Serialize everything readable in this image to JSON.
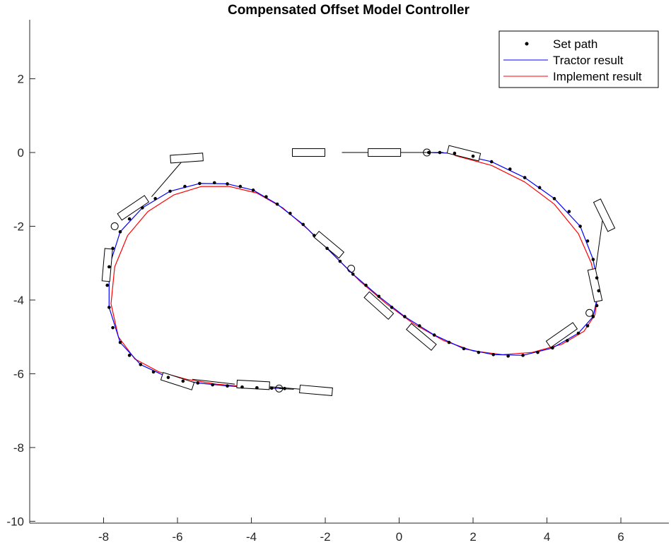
{
  "chart_data": {
    "type": "line",
    "title": "Compensated Offset Model Controller",
    "xlabel": "",
    "ylabel": "",
    "xlim": [
      -10,
      7.3
    ],
    "ylim": [
      -10.05,
      3.6
    ],
    "x_ticks": [
      -8,
      -6,
      -4,
      -2,
      0,
      2,
      4,
      6
    ],
    "y_ticks": [
      2,
      0,
      -2,
      -4,
      -6,
      -8,
      -10
    ],
    "legend_position": "top-right",
    "grid": false,
    "series": [
      {
        "name": "Set path",
        "style": "dots",
        "color": "#000000",
        "x": [
          0.8,
          1.1,
          1.5,
          2.0,
          2.5,
          3.0,
          3.4,
          3.8,
          4.2,
          4.6,
          4.9,
          5.1,
          5.25,
          5.35,
          5.4,
          5.35,
          5.25,
          5.1,
          4.85,
          4.55,
          4.15,
          3.75,
          3.35,
          2.95,
          2.55,
          2.15,
          1.75,
          1.35,
          0.95,
          0.55,
          0.15,
          -0.2,
          -0.55,
          -0.9,
          -1.25,
          -1.6,
          -1.95,
          -2.3,
          -2.6,
          -2.95,
          -3.3,
          -3.6,
          -3.95,
          -4.3,
          -4.65,
          -5.0,
          -5.4,
          -5.8,
          -6.2,
          -6.6,
          -6.95,
          -7.3,
          -7.55,
          -7.75,
          -7.85,
          -7.9,
          -7.85,
          -7.75,
          -7.55,
          -7.3,
          -7.0,
          -6.65,
          -6.25,
          -5.85,
          -5.45,
          -5.05,
          -4.65,
          -4.25,
          -3.85,
          -3.45,
          -3.1
        ],
        "y": [
          0.0,
          0.0,
          -0.02,
          -0.1,
          -0.25,
          -0.45,
          -0.68,
          -0.95,
          -1.25,
          -1.6,
          -2.0,
          -2.4,
          -2.9,
          -3.4,
          -3.75,
          -4.15,
          -4.45,
          -4.7,
          -4.9,
          -5.1,
          -5.3,
          -5.42,
          -5.5,
          -5.52,
          -5.48,
          -5.42,
          -5.32,
          -5.15,
          -4.95,
          -4.7,
          -4.45,
          -4.2,
          -3.9,
          -3.6,
          -3.3,
          -2.95,
          -2.6,
          -2.25,
          -1.95,
          -1.65,
          -1.4,
          -1.2,
          -1.02,
          -0.92,
          -0.85,
          -0.82,
          -0.84,
          -0.92,
          -1.05,
          -1.25,
          -1.5,
          -1.8,
          -2.15,
          -2.6,
          -3.1,
          -3.6,
          -4.2,
          -4.75,
          -5.15,
          -5.5,
          -5.75,
          -5.95,
          -6.1,
          -6.2,
          -6.25,
          -6.3,
          -6.33,
          -6.36,
          -6.38,
          -6.39,
          -6.4
        ]
      },
      {
        "name": "Tractor result",
        "style": "line",
        "color": "#0000ff",
        "x": [
          0.8,
          1.5,
          2.5,
          3.4,
          4.2,
          4.9,
          5.25,
          5.4,
          5.25,
          4.85,
          4.15,
          3.35,
          2.55,
          1.75,
          0.95,
          0.15,
          -0.55,
          -1.25,
          -1.95,
          -2.6,
          -3.3,
          -3.95,
          -4.65,
          -5.4,
          -6.2,
          -6.95,
          -7.55,
          -7.85,
          -7.85,
          -7.55,
          -7.0,
          -6.25,
          -5.45,
          -4.65,
          -3.85,
          -3.1
        ],
        "y": [
          0.0,
          -0.02,
          -0.25,
          -0.68,
          -1.25,
          -2.0,
          -2.9,
          -3.75,
          -4.45,
          -4.9,
          -5.3,
          -5.5,
          -5.48,
          -5.32,
          -4.95,
          -4.45,
          -3.9,
          -3.3,
          -2.6,
          -1.95,
          -1.4,
          -1.02,
          -0.85,
          -0.84,
          -1.05,
          -1.5,
          -2.15,
          -3.1,
          -4.2,
          -5.15,
          -5.75,
          -6.1,
          -6.25,
          -6.33,
          -6.38,
          -6.4
        ]
      },
      {
        "name": "Implement result",
        "style": "line",
        "color": "#ff0000",
        "x": [
          1.5,
          2.5,
          3.4,
          4.2,
          4.85,
          5.2,
          5.38,
          5.3,
          5.0,
          4.4,
          3.6,
          2.8,
          2.0,
          1.2,
          0.4,
          -0.35,
          -1.05,
          -1.75,
          -2.45,
          -3.15,
          -3.85,
          -4.6,
          -5.35,
          -6.1,
          -6.8,
          -7.35,
          -7.7,
          -7.8,
          -7.6,
          -7.15,
          -6.5,
          -5.75,
          -4.95,
          -4.15,
          -3.35
        ],
        "y": [
          -0.08,
          -0.35,
          -0.8,
          -1.4,
          -2.2,
          -3.0,
          -3.8,
          -4.4,
          -4.85,
          -5.2,
          -5.42,
          -5.48,
          -5.38,
          -5.1,
          -4.65,
          -4.1,
          -3.5,
          -2.8,
          -2.1,
          -1.5,
          -1.1,
          -0.92,
          -0.92,
          -1.15,
          -1.6,
          -2.25,
          -3.1,
          -4.1,
          -5.0,
          -5.6,
          -5.95,
          -6.15,
          -6.28,
          -6.35,
          -6.4
        ]
      }
    ],
    "hitch_markers": [
      {
        "x": 0.75,
        "y": 0.0
      },
      {
        "x": 5.15,
        "y": -4.35
      },
      {
        "x": -1.3,
        "y": -3.15
      },
      {
        "x": -7.7,
        "y": -2.0
      },
      {
        "x": -3.25,
        "y": -6.4
      }
    ],
    "vehicle_rectangles": [
      {
        "cx": -0.4,
        "cy": 0.0,
        "angle": 0
      },
      {
        "cx": -2.45,
        "cy": 0.0,
        "angle": 0
      },
      {
        "cx": 1.75,
        "cy": -0.02,
        "angle": -14
      },
      {
        "cx": 5.55,
        "cy": -1.7,
        "angle": -64
      },
      {
        "cx": 5.3,
        "cy": -3.6,
        "angle": -78
      },
      {
        "cx": 4.4,
        "cy": -4.95,
        "angle": 35
      },
      {
        "cx": 0.6,
        "cy": -5.0,
        "angle": -40
      },
      {
        "cx": -0.55,
        "cy": -4.15,
        "angle": -42
      },
      {
        "cx": -1.9,
        "cy": -2.5,
        "angle": -40
      },
      {
        "cx": -7.2,
        "cy": -1.5,
        "angle": 34
      },
      {
        "cx": -7.9,
        "cy": -3.05,
        "angle": 85
      },
      {
        "cx": -5.75,
        "cy": -0.15,
        "angle": 4
      },
      {
        "cx": -6.0,
        "cy": -6.2,
        "angle": -18
      },
      {
        "cx": -3.95,
        "cy": -6.3,
        "angle": -3
      },
      {
        "cx": -2.25,
        "cy": -6.45,
        "angle": -5
      }
    ],
    "tow_links": [
      {
        "x1": -1.55,
        "y1": 0.0,
        "x2": 0.75,
        "y2": 0.0
      },
      {
        "x1": 0.75,
        "y1": 0.0,
        "x2": 1.2,
        "y2": 0.0
      },
      {
        "x1": 5.5,
        "y1": -1.85,
        "x2": 5.3,
        "y2": -3.3
      },
      {
        "x1": -6.7,
        "y1": -1.2,
        "x2": -5.8,
        "y2": -0.15
      },
      {
        "x1": -5.6,
        "y1": -6.15,
        "x2": -4.45,
        "y2": -6.28
      },
      {
        "x1": -3.5,
        "y1": -6.35,
        "x2": -2.65,
        "y2": -6.42
      },
      {
        "x1": -3.25,
        "y1": -6.4,
        "x2": -2.85,
        "y2": -6.42
      }
    ]
  }
}
